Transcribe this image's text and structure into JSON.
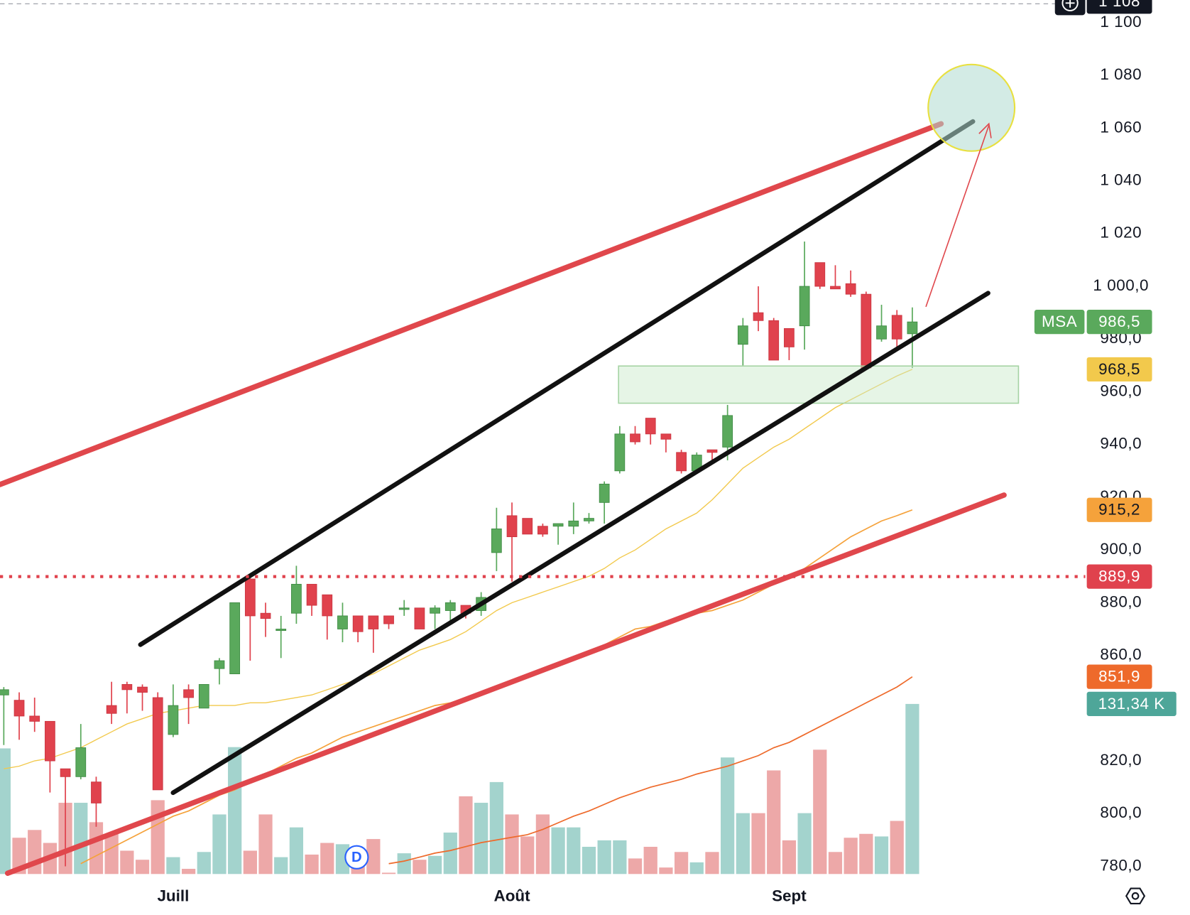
{
  "chart_data": {
    "type": "candlestick",
    "ticker": "MSA",
    "event_marker": "D",
    "categories": [
      null,
      null,
      null,
      null,
      null,
      null,
      null,
      null,
      null,
      null,
      null,
      "Juill",
      null,
      null,
      null,
      null,
      null,
      null,
      null,
      null,
      null,
      null,
      null,
      null,
      null,
      null,
      null,
      null,
      null,
      null,
      null,
      null,
      null,
      "Août",
      null,
      null,
      null,
      null,
      null,
      null,
      null,
      null,
      null,
      null,
      null,
      null,
      null,
      null,
      null,
      null,
      null,
      "Sept",
      null,
      null,
      null,
      null,
      null,
      null,
      null,
      null
    ],
    "open": [
      845,
      843,
      837,
      835,
      817,
      814,
      812,
      841,
      849,
      848,
      844,
      830,
      847,
      840,
      855,
      853,
      889,
      876,
      870,
      876,
      887,
      883,
      870,
      875,
      875,
      875,
      878,
      878,
      876,
      877,
      879,
      877,
      899,
      913,
      912,
      909,
      909,
      909,
      911,
      918,
      930,
      944,
      950,
      944,
      937,
      930,
      938,
      939,
      978,
      990,
      987,
      984,
      985,
      1009,
      1000,
      1001,
      997,
      980,
      989,
      982
    ],
    "high": [
      848,
      846,
      844,
      835,
      817,
      834,
      814,
      850,
      850,
      849,
      846,
      849,
      849,
      849,
      859,
      880,
      890,
      880,
      875,
      894,
      887,
      883,
      880,
      875,
      875,
      875,
      881,
      878,
      879,
      881,
      879,
      884,
      916,
      918,
      912,
      910,
      910,
      918,
      914,
      926,
      947,
      947,
      950,
      944,
      938,
      937,
      938,
      955,
      988,
      1000,
      988,
      984,
      1017,
      1009,
      1008,
      1006,
      998,
      993,
      991,
      992
    ],
    "low": [
      826,
      828,
      831,
      808,
      780,
      813,
      795,
      834,
      838,
      839,
      809,
      829,
      834,
      840,
      849,
      853,
      858,
      867,
      859,
      872,
      875,
      866,
      865,
      865,
      861,
      870,
      875,
      870,
      870,
      872,
      874,
      875,
      892,
      888,
      906,
      905,
      902,
      906,
      910,
      910,
      929,
      940,
      940,
      937,
      929,
      929,
      934,
      934,
      970,
      983,
      972,
      972,
      976,
      999,
      999,
      996,
      969,
      979,
      976,
      969
    ],
    "close": [
      847,
      837,
      835,
      820,
      814,
      825,
      804,
      838,
      847,
      846,
      809,
      841,
      844,
      849,
      858,
      880,
      875,
      874,
      870,
      887,
      879,
      875,
      875,
      869,
      870,
      872,
      878,
      870,
      878,
      880,
      876,
      882,
      908,
      905,
      906,
      906,
      910,
      911,
      912,
      925,
      944,
      941,
      944,
      942,
      930,
      936,
      937,
      951,
      985,
      987,
      972,
      977,
      1000,
      1000,
      999,
      997,
      969,
      985,
      980,
      986.5
    ],
    "up_color": "#5aa95c",
    "down_color": "#e0424d",
    "volume": [
      97,
      28,
      34,
      24,
      55,
      55,
      40,
      31,
      18,
      11,
      57,
      13,
      4,
      17,
      46,
      98,
      18,
      46,
      13,
      36,
      15,
      24,
      23,
      13,
      27,
      1,
      16,
      11,
      14,
      32,
      60,
      55,
      71,
      46,
      29,
      46,
      36,
      36,
      21,
      26,
      26,
      12,
      21,
      5,
      17,
      9,
      17,
      90,
      47,
      47,
      80,
      26,
      47,
      96,
      17,
      28,
      31,
      29,
      41,
      131.34
    ],
    "volume_ylim": [
      0,
      675
    ],
    "volume_up_color": "#a3d3cd",
    "volume_down_color": "#eda8a8",
    "volume_label": {
      "value": 131.34,
      "label": "131,34 K",
      "color": "#4ea699"
    },
    "series": [
      {
        "color": "#f2c94c",
        "values": [
          817,
          818,
          820,
          821,
          823,
          825,
          828,
          831,
          834,
          836,
          838,
          839,
          840,
          841,
          841,
          841,
          842,
          842,
          843,
          844,
          845,
          847,
          849,
          851,
          853,
          856,
          859,
          862,
          864,
          866,
          869,
          873,
          877,
          880,
          882,
          884,
          886,
          888,
          890,
          893,
          897,
          900,
          904,
          908,
          911,
          914,
          919,
          925,
          931,
          935,
          939,
          942,
          946,
          950,
          954,
          957,
          960,
          963,
          966,
          968.5
        ]
      },
      {
        "color": "#f5a23b",
        "values": [
          null,
          null,
          null,
          null,
          null,
          781,
          784,
          787,
          790,
          793,
          796,
          799,
          801,
          804,
          807,
          809,
          812,
          815,
          818,
          821,
          823,
          826,
          829,
          831,
          833,
          835,
          837,
          839,
          841,
          842,
          844,
          846,
          848,
          850,
          852,
          854,
          856,
          859,
          861,
          864,
          867,
          870,
          871,
          873,
          874,
          876,
          877,
          879,
          881,
          884,
          887,
          890,
          893,
          897,
          901,
          905,
          908,
          911,
          913,
          915.2
        ]
      },
      {
        "color": "#ee6a2b",
        "values": [
          null,
          null,
          null,
          null,
          null,
          null,
          null,
          null,
          null,
          null,
          null,
          null,
          null,
          null,
          null,
          null,
          null,
          null,
          null,
          null,
          null,
          null,
          null,
          null,
          null,
          781,
          782,
          783.5,
          785,
          786,
          787.5,
          789,
          790,
          791,
          792,
          794,
          796.5,
          799,
          801,
          803.5,
          806,
          808,
          810,
          811.5,
          813,
          815,
          816.5,
          818,
          820,
          822,
          825,
          827,
          830,
          833,
          836,
          839,
          842,
          845,
          848,
          851.9
        ]
      }
    ],
    "ylim": [
      774.5,
      1108.6
    ],
    "yticks": [
      {
        "value": 780,
        "label": "780,0"
      },
      {
        "value": 800,
        "label": "800,0"
      },
      {
        "value": 820,
        "label": "820,0"
      },
      {
        "value": 860,
        "label": "860,0"
      },
      {
        "value": 880,
        "label": "880,0"
      },
      {
        "value": 900,
        "label": "900,0"
      },
      {
        "value": 920,
        "label": "920,0"
      },
      {
        "value": 940,
        "label": "940,0"
      },
      {
        "value": 960,
        "label": "960,0"
      },
      {
        "value": 980,
        "label": "980,0"
      },
      {
        "value": 1000,
        "label": "1 000,0"
      },
      {
        "value": 1020,
        "label": "1 020"
      },
      {
        "value": 1040,
        "label": "1 040"
      },
      {
        "value": 1060,
        "label": "1 060"
      },
      {
        "value": 1080,
        "label": "1 080"
      },
      {
        "value": 1100,
        "label": "1 100"
      }
    ],
    "price_labels": [
      {
        "value": 1108,
        "label": "1 108",
        "color": "#131722",
        "text_color": "#ffffff"
      },
      {
        "value": 986.5,
        "label": "986,5",
        "color": "#5aa95c",
        "text_color": "#ffffff"
      },
      {
        "value": 968.5,
        "label": "968,5",
        "color": "#f2c94c",
        "text_color": "#131722"
      },
      {
        "value": 915.2,
        "label": "915,2",
        "color": "#f5a23b",
        "text_color": "#131722"
      },
      {
        "value": 889.9,
        "label": "889,9",
        "color": "#e0424d",
        "text_color": "#ffffff",
        "dotted_line": true
      },
      {
        "value": 851.9,
        "label": "851,9",
        "color": "#ee6a2b",
        "text_color": "#ffffff"
      }
    ]
  }
}
